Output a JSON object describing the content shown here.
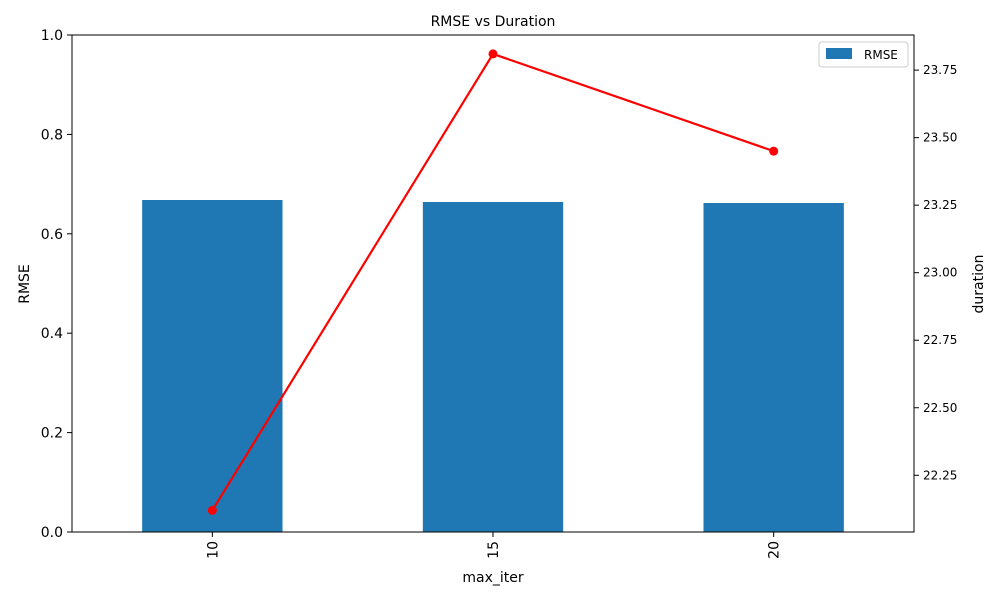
{
  "chart_data": {
    "type": "bar",
    "title": "RMSE vs Duration",
    "xlabel": "max_iter",
    "ylabel": "RMSE",
    "y2label": "duration",
    "categories": [
      "10",
      "15",
      "20"
    ],
    "series": [
      {
        "name": "RMSE",
        "type": "bar",
        "axis": "left",
        "values": [
          0.668,
          0.664,
          0.662
        ],
        "color": "#1f77b4"
      },
      {
        "type": "line",
        "axis": "right",
        "values": [
          22.12,
          23.81,
          23.45
        ],
        "color": "#ff0000",
        "marker": "circle"
      }
    ],
    "ylim": [
      0,
      1.0
    ],
    "yticks": [
      "0.0",
      "0.2",
      "0.4",
      "0.6",
      "0.8",
      "1.0"
    ],
    "y2lim": [
      22.04,
      23.88
    ],
    "y2ticks": [
      "22.25",
      "22.50",
      "22.75",
      "23.00",
      "23.25",
      "23.50",
      "23.75"
    ],
    "legend": {
      "placement": "top-right",
      "entries": [
        "RMSE"
      ]
    },
    "grid": false
  }
}
